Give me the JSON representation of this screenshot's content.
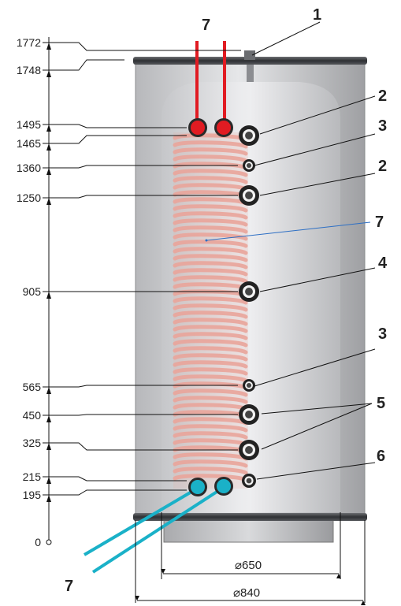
{
  "dimensions_mm": [
    "1772",
    "1748",
    "1495",
    "1465",
    "1360",
    "1250",
    "905",
    "565",
    "450",
    "325",
    "215",
    "195",
    "0"
  ],
  "callouts": {
    "top_sensor": "1",
    "heat_pump_coil_top": "7",
    "heat_pump_coil_mid": "7",
    "heat_pump_coil_bottom": "7",
    "connection_2_upper": "2",
    "connection_2_lower": "2",
    "connection_3_upper": "3",
    "connection_3_lower": "3",
    "connection_4": "4",
    "connection_5": "5",
    "connection_6": "6"
  },
  "diameters": {
    "inner": "⌀650",
    "outer": "⌀840"
  },
  "colors": {
    "hot_pipe": "#e11b22",
    "cold_pipe": "#1ab1c8",
    "coil": "#e9a49a",
    "tank_body": "#c9c9cc",
    "band": "#4a4c50"
  }
}
